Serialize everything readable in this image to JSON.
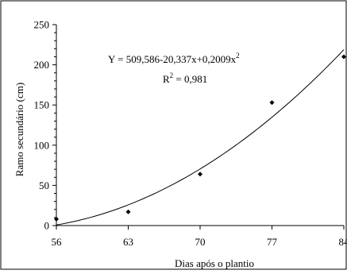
{
  "chart_data": {
    "type": "scatter",
    "xlabel": "Dias após o plantio",
    "ylabel": "Ramo secundário (cm)",
    "xlim": [
      56,
      84
    ],
    "ylim": [
      0,
      250
    ],
    "x_ticks": [
      56,
      63,
      70,
      77,
      84
    ],
    "y_ticks": [
      0,
      50,
      100,
      150,
      200,
      250
    ],
    "points": [
      {
        "x": 56,
        "y": 8
      },
      {
        "x": 63,
        "y": 17
      },
      {
        "x": 70,
        "y": 64
      },
      {
        "x": 77,
        "y": 153
      },
      {
        "x": 84,
        "y": 210
      }
    ],
    "fit": {
      "equation_prefix": "Y = 509,586-20,337x+0,2009x",
      "equation_exp": "2",
      "r2_prefix": "R",
      "r2_exp": "2",
      "r2_suffix": " = 0,981",
      "a": 509.586,
      "b": -20.337,
      "c": 0.2009
    },
    "grid": false,
    "marker": "diamond",
    "colors": {
      "marker": "#000000",
      "line": "#000000",
      "axis": "#000000"
    }
  }
}
